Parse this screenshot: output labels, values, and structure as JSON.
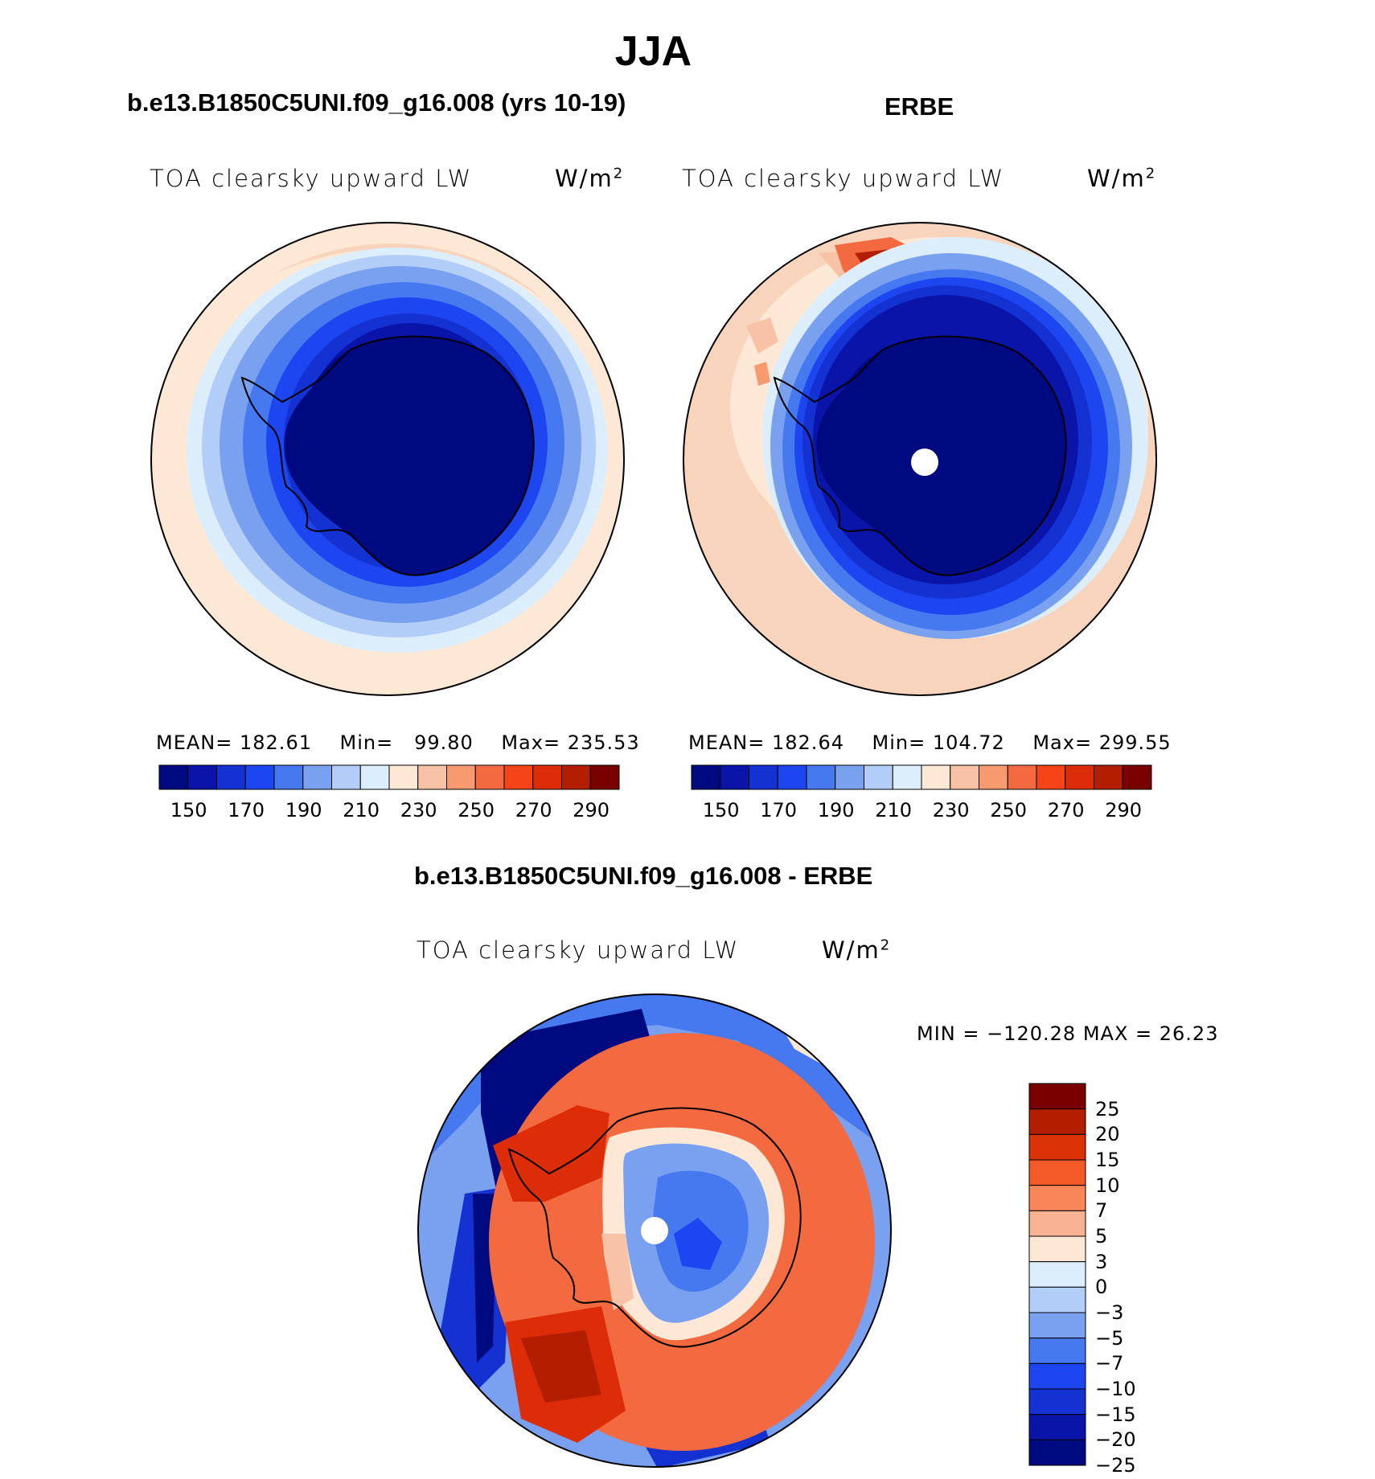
{
  "figure": {
    "title": "JJA"
  },
  "panels": [
    {
      "title": "b.e13.B1850C5UNI.f09_g16.008 (yrs 10-19)",
      "variable": "TOA clearsky upward LW",
      "units_base": "W/m",
      "units_exp": "2",
      "stats": {
        "mean_label": "MEAN=",
        "mean": "182.61",
        "min_label": "Min=",
        "min": "99.80",
        "max_label": "Max=",
        "max": "235.53"
      }
    },
    {
      "title": "ERBE",
      "variable": "TOA clearsky upward LW",
      "units_base": "W/m",
      "units_exp": "2",
      "stats": {
        "mean_label": "MEAN=",
        "mean": "182.64",
        "min_label": "Min=",
        "min": "104.72",
        "max_label": "Max=",
        "max": "299.55"
      }
    },
    {
      "title": "b.e13.B1850C5UNI.f09_g16.008 - ERBE",
      "variable": "TOA clearsky upward LW",
      "units_base": "W/m",
      "units_exp": "2",
      "stats_text": "MIN = −120.28 MAX =  26.23"
    }
  ],
  "colorbars": {
    "abs": {
      "colors": [
        "#000a80",
        "#0a14a8",
        "#1432d2",
        "#1e46f0",
        "#4678f0",
        "#7aa0f0",
        "#b2cdf8",
        "#dceefc",
        "#fde8d6",
        "#f8c2a6",
        "#f89a70",
        "#f46a40",
        "#f44418",
        "#dc2c08",
        "#b41e00",
        "#7a0000"
      ],
      "labels": [
        "150",
        "170",
        "190",
        "210",
        "230",
        "250",
        "270",
        "290"
      ]
    },
    "diff": {
      "colors": [
        "#000a80",
        "#0a14a8",
        "#1432d2",
        "#1e46f0",
        "#4678f0",
        "#7aa0f0",
        "#b2cdf8",
        "#dceefc",
        "#fde8d6",
        "#f8b292",
        "#f88658",
        "#f45a28",
        "#dc3208",
        "#b41e00",
        "#7a0000"
      ],
      "labels": [
        "25",
        "20",
        "15",
        "10",
        "7",
        "5",
        "3",
        "0",
        "−3",
        "−5",
        "−7",
        "−10",
        "−15",
        "−20",
        "−25"
      ]
    }
  },
  "map": {
    "projection": "south polar stereographic",
    "region": "Antarctica"
  }
}
